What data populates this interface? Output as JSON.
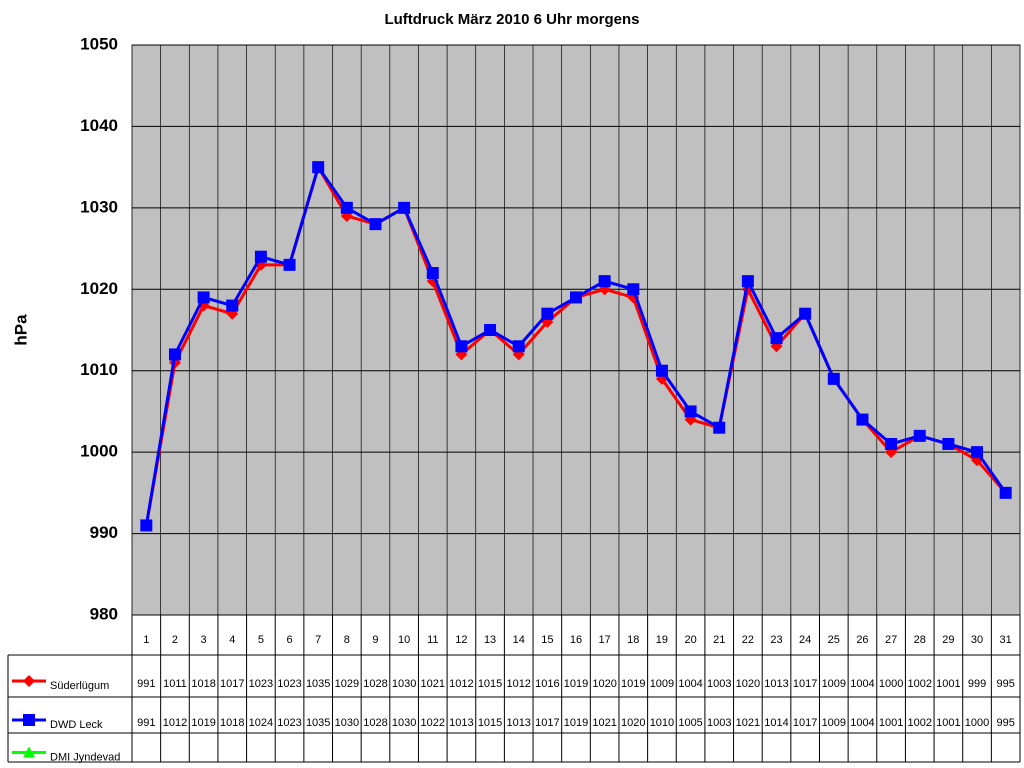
{
  "chart_data": {
    "type": "line",
    "title": "Luftdruck März 2010 6 Uhr morgens",
    "y_label": "hPa",
    "categories": [
      "1",
      "2",
      "3",
      "4",
      "5",
      "6",
      "7",
      "8",
      "9",
      "10",
      "11",
      "12",
      "13",
      "14",
      "15",
      "16",
      "17",
      "18",
      "19",
      "20",
      "21",
      "22",
      "23",
      "24",
      "25",
      "26",
      "27",
      "28",
      "29",
      "30",
      "31"
    ],
    "series": [
      {
        "name": "Süderlügum",
        "color": "#ff0000",
        "marker": "diamond",
        "values": [
          991,
          1011,
          1018,
          1017,
          1023,
          1023,
          1035,
          1029,
          1028,
          1030,
          1021,
          1012,
          1015,
          1012,
          1016,
          1019,
          1020,
          1019,
          1009,
          1004,
          1003,
          1020,
          1013,
          1017,
          1009,
          1004,
          1000,
          1002,
          1001,
          999,
          995
        ]
      },
      {
        "name": "DWD Leck",
        "color": "#0000ff",
        "marker": "square",
        "values": [
          991,
          1012,
          1019,
          1018,
          1024,
          1023,
          1035,
          1030,
          1028,
          1030,
          1022,
          1013,
          1015,
          1013,
          1017,
          1019,
          1021,
          1020,
          1010,
          1005,
          1003,
          1021,
          1014,
          1017,
          1009,
          1004,
          1001,
          1002,
          1001,
          1000,
          995
        ]
      },
      {
        "name": "DMI Jyndevad",
        "color": "#00ff00",
        "marker": "triangle",
        "values": [
          null,
          null,
          null,
          null,
          null,
          null,
          null,
          null,
          null,
          null,
          null,
          null,
          null,
          null,
          null,
          null,
          null,
          null,
          null,
          null,
          null,
          null,
          null,
          null,
          null,
          null,
          null,
          null,
          null,
          null,
          null
        ]
      }
    ],
    "ylim": [
      980,
      1050
    ],
    "yticks": [
      980,
      990,
      1000,
      1010,
      1020,
      1030,
      1040,
      1050
    ],
    "grid": true,
    "plot_background": "#c0c0c0"
  }
}
